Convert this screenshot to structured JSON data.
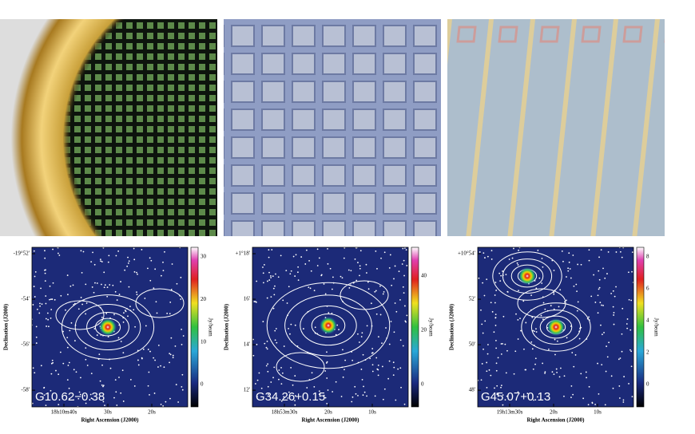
{
  "maps": [
    {
      "label": "G10.62−0.38",
      "y_title": "Declination (J2000)",
      "x_title": "Right Ascension (J2000)",
      "colorbar_title": "Jy/beam",
      "yticks": [
        "-19°52'",
        "-54'",
        "-56'",
        "-58'"
      ],
      "xticks": [
        "18h10m40s",
        "30s",
        "20s"
      ],
      "colorbar_ticks": [
        "0",
        "10",
        "20",
        "30"
      ]
    },
    {
      "label": "G34.26+0.15",
      "y_title": "Declination (J2000)",
      "x_title": "Right Ascension (J2000)",
      "colorbar_title": "Jy/beam",
      "yticks": [
        "+1°18'",
        "16'",
        "14'",
        "12'"
      ],
      "xticks": [
        "18h53m30s",
        "20s",
        "10s"
      ],
      "colorbar_ticks": [
        "0",
        "20",
        "40"
      ]
    },
    {
      "label": "G45.07+0.13",
      "y_title": "Declination (J2000)",
      "x_title": "Right Ascension (J2000)",
      "colorbar_title": "Jy/beam",
      "yticks": [
        "+10°54'",
        "52'",
        "50'",
        "48'"
      ],
      "xticks": [
        "19h13m30s",
        "20s",
        "10s"
      ],
      "colorbar_ticks": [
        "0",
        "2",
        "4",
        "6",
        "8"
      ]
    }
  ]
}
